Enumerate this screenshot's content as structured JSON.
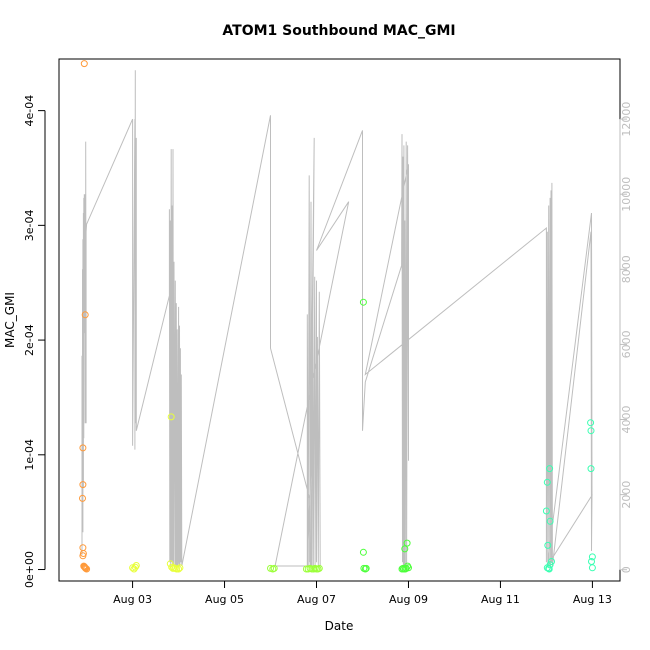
{
  "chart_data": {
    "type": "scatter",
    "title": "ATOM1 Southbound MAC_GMI",
    "xlabel": "Date",
    "ylabel": "MAC_GMI",
    "y_axis": {
      "ticks": [
        0,
        0.0001,
        0.0002,
        0.0003,
        0.0004
      ],
      "tick_labels": [
        "0e+00",
        "1e-04",
        "2e-04",
        "3e-04",
        "4e-04"
      ],
      "range": [
        -1e-05,
        0.000445
      ]
    },
    "y2_axis": {
      "ticks": [
        0,
        2000,
        4000,
        6000,
        8000,
        10000,
        12000
      ],
      "tick_labels": [
        "0",
        "2000",
        "4000",
        "6000",
        "8000",
        "10000",
        "12000"
      ],
      "range": [
        -300,
        13600
      ],
      "color": "#bebebe"
    },
    "x_axis": {
      "ticks": [
        3,
        5,
        7,
        9,
        11,
        13
      ],
      "tick_labels": [
        "Aug 03",
        "Aug 05",
        "Aug 07",
        "Aug 09",
        "Aug 11",
        "Aug 13"
      ],
      "range": [
        1.4,
        13.6
      ],
      "unit": "day of August"
    },
    "series": [
      {
        "type": "points",
        "color": "#FF9A3A",
        "points": [
          [
            1.95,
            0.000441
          ],
          [
            1.97,
            0.000222
          ],
          [
            1.92,
            0.000106
          ],
          [
            1.92,
            7.4e-05
          ],
          [
            1.91,
            6.2e-05
          ],
          [
            1.92,
            1.9e-05
          ],
          [
            1.93,
            1.4e-05
          ],
          [
            1.92,
            1.2e-05
          ],
          [
            1.94,
            3e-06
          ],
          [
            1.96,
            2e-06
          ],
          [
            1.98,
            1e-06
          ],
          [
            2.0,
            5e-07
          ],
          [
            1.97,
            1.5e-06
          ],
          [
            1.95,
            2.5e-06
          ]
        ]
      },
      {
        "type": "points",
        "color": "#E8FF3A",
        "points": [
          [
            3.0,
            1.5e-06
          ],
          [
            3.03,
            5e-07
          ],
          [
            3.06,
            2e-06
          ],
          [
            3.08,
            3.5e-06
          ],
          [
            3.84,
            0.000133
          ],
          [
            3.82,
            5e-06
          ],
          [
            3.85,
            2e-06
          ],
          [
            3.88,
            1e-06
          ],
          [
            3.9,
            1.5e-06
          ],
          [
            3.93,
            1e-06
          ],
          [
            3.96,
            5e-07
          ],
          [
            4.0,
            5e-07
          ],
          [
            4.03,
            1.5e-06
          ]
        ]
      },
      {
        "type": "points",
        "color": "#9CFF3A",
        "points": [
          [
            6.0,
            1e-06
          ],
          [
            6.05,
            5e-07
          ],
          [
            6.08,
            1e-06
          ],
          [
            6.78,
            5e-07
          ],
          [
            6.82,
            5e-07
          ],
          [
            6.86,
            1e-06
          ],
          [
            6.9,
            5e-07
          ],
          [
            6.94,
            5e-07
          ],
          [
            6.97,
            1e-06
          ],
          [
            7.0,
            5e-07
          ],
          [
            7.03,
            5e-07
          ],
          [
            7.06,
            1e-06
          ]
        ]
      },
      {
        "type": "points",
        "color": "#4CFF3A",
        "points": [
          [
            8.02,
            0.000233
          ],
          [
            8.02,
            1.5e-05
          ],
          [
            8.03,
            1e-06
          ],
          [
            8.06,
            5e-07
          ],
          [
            8.08,
            1e-06
          ],
          [
            8.86,
            5e-07
          ],
          [
            8.88,
            1e-06
          ],
          [
            8.9,
            5e-07
          ],
          [
            8.92,
            1.8e-05
          ],
          [
            8.97,
            2.3e-05
          ],
          [
            8.95,
            1e-06
          ],
          [
            8.98,
            3e-06
          ],
          [
            9.0,
            1.5e-06
          ],
          [
            8.93,
            5e-07
          ]
        ]
      },
      {
        "type": "points",
        "color": "#3AFFB2",
        "points": [
          [
            12.0,
            5.1e-05
          ],
          [
            12.02,
            7.6e-05
          ],
          [
            12.03,
            2.1e-05
          ],
          [
            12.07,
            8.8e-05
          ],
          [
            12.08,
            4.2e-05
          ],
          [
            12.05,
            1e-06
          ],
          [
            12.08,
            4e-06
          ],
          [
            12.11,
            7e-06
          ],
          [
            12.02,
            1.5e-06
          ],
          [
            12.06,
            5e-07
          ],
          [
            12.96,
            0.000128
          ],
          [
            12.97,
            0.000121
          ],
          [
            12.97,
            8.8e-05
          ],
          [
            13.0,
            1.1e-05
          ],
          [
            12.98,
            7e-06
          ],
          [
            13.0,
            1.5e-06
          ]
        ]
      },
      {
        "type": "line",
        "axis": "right",
        "color": "#bebebe",
        "points": [
          [
            1.9,
            400
          ],
          [
            1.9,
            5700
          ],
          [
            1.9,
            2200
          ],
          [
            1.9,
            4500
          ],
          [
            1.91,
            1300
          ],
          [
            1.91,
            8000
          ],
          [
            1.92,
            1000
          ],
          [
            1.92,
            8800
          ],
          [
            1.93,
            2200
          ],
          [
            1.93,
            9500
          ],
          [
            1.94,
            3500
          ],
          [
            1.94,
            9900
          ],
          [
            1.95,
            6300
          ],
          [
            1.95,
            10000
          ],
          [
            1.96,
            6500
          ],
          [
            1.96,
            9700
          ],
          [
            1.97,
            3900
          ],
          [
            1.97,
            10000
          ],
          [
            1.98,
            8600
          ],
          [
            1.98,
            11400
          ],
          [
            1.99,
            3900
          ],
          [
            1.99,
            9000
          ],
          [
            2.0,
            9200
          ],
          [
            3.0,
            12000
          ],
          [
            3.0,
            3300
          ],
          [
            3.05,
            12000
          ],
          [
            3.05,
            3200
          ],
          [
            3.06,
            13300
          ],
          [
            3.06,
            3900
          ],
          [
            3.08,
            11500
          ],
          [
            3.08,
            3700
          ],
          [
            3.8,
            7300
          ],
          [
            3.8,
            9600
          ],
          [
            3.81,
            200
          ],
          [
            3.82,
            9300
          ],
          [
            3.83,
            100
          ],
          [
            3.84,
            11200
          ],
          [
            3.85,
            200
          ],
          [
            3.86,
            9700
          ],
          [
            3.87,
            100
          ],
          [
            3.88,
            11200
          ],
          [
            3.89,
            100
          ],
          [
            3.9,
            8200
          ],
          [
            3.92,
            100
          ],
          [
            3.93,
            7700
          ],
          [
            3.94,
            100
          ],
          [
            3.95,
            7100
          ],
          [
            3.96,
            100
          ],
          [
            3.97,
            6400
          ],
          [
            3.98,
            100
          ],
          [
            4.0,
            7000
          ],
          [
            4.0,
            200
          ],
          [
            4.01,
            100
          ],
          [
            4.02,
            6500
          ],
          [
            4.03,
            100
          ],
          [
            4.04,
            5900
          ],
          [
            4.05,
            200
          ],
          [
            4.06,
            5200
          ],
          [
            4.07,
            100
          ],
          [
            6.0,
            12100
          ],
          [
            6.0,
            5900
          ],
          [
            6.85,
            1900
          ],
          [
            6.85,
            200
          ],
          [
            6.95,
            11500
          ],
          [
            6.88,
            100
          ],
          [
            6.9,
            3400
          ],
          [
            6.8,
            100
          ],
          [
            6.8,
            6800
          ],
          [
            6.82,
            100
          ],
          [
            6.84,
            10500
          ],
          [
            6.86,
            100
          ],
          [
            6.88,
            9800
          ],
          [
            6.9,
            100
          ],
          [
            6.92,
            8000
          ],
          [
            6.93,
            100
          ],
          [
            6.96,
            7800
          ],
          [
            6.97,
            100
          ],
          [
            7.0,
            7700
          ],
          [
            7.0,
            200
          ],
          [
            7.02,
            6200
          ],
          [
            7.04,
            100
          ],
          [
            7.06,
            7400
          ],
          [
            7.08,
            100
          ],
          [
            6.1,
            100
          ],
          [
            7.7,
            9800
          ],
          [
            7.0,
            8500
          ],
          [
            8.0,
            11700
          ],
          [
            8.0,
            3700
          ],
          [
            8.06,
            5000
          ],
          [
            8.85,
            8100
          ],
          [
            8.86,
            11600
          ],
          [
            8.87,
            200
          ],
          [
            8.88,
            11000
          ],
          [
            8.89,
            100
          ],
          [
            8.9,
            11300
          ],
          [
            8.91,
            100
          ],
          [
            8.92,
            9300
          ],
          [
            8.93,
            100
          ],
          [
            8.95,
            11400
          ],
          [
            8.96,
            100
          ],
          [
            8.98,
            11300
          ],
          [
            9.0,
            2900
          ],
          [
            9.0,
            10800
          ],
          [
            8.06,
            5200
          ],
          [
            12.0,
            9100
          ],
          [
            12.0,
            200
          ],
          [
            12.02,
            9000
          ],
          [
            12.03,
            100
          ],
          [
            12.05,
            9700
          ],
          [
            12.06,
            100
          ],
          [
            12.08,
            9900
          ],
          [
            12.09,
            100
          ],
          [
            12.1,
            10100
          ],
          [
            12.11,
            200
          ],
          [
            12.12,
            10300
          ],
          [
            12.13,
            100
          ],
          [
            12.97,
            9000
          ],
          [
            12.98,
            500
          ],
          [
            12.99,
            2000
          ],
          [
            12.98,
            9500
          ],
          [
            12.02,
            100
          ],
          [
            13.0,
            2000
          ]
        ]
      }
    ],
    "grid": false
  }
}
